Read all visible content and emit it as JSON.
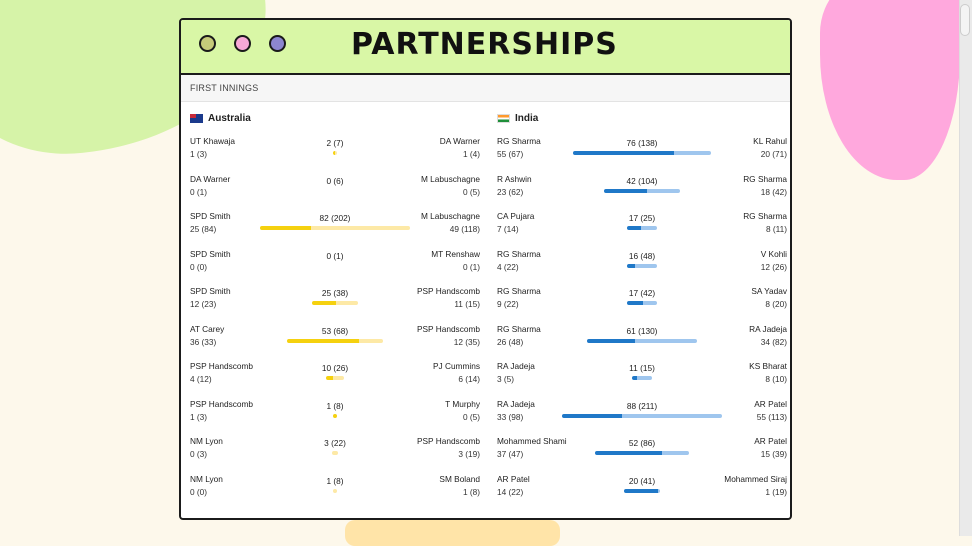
{
  "page": {
    "title": "PARTNERSHIPS",
    "innings_label": "FIRST INNINGS"
  },
  "colors": {
    "aus_strong": "#f5d10f",
    "aus_light": "#fde9a6",
    "ind_strong": "#1f78c8",
    "ind_light": "#9fc6ee"
  },
  "teams": [
    {
      "name": "Australia",
      "flag": "australia-flag-icon",
      "partnerships": [
        {
          "left_name": "UT Khawaja",
          "left_runs": "1 (3)",
          "runs": "2 (7)",
          "right_name": "DA Warner",
          "right_runs": "1 (4)",
          "left_val": 1,
          "right_val": 1,
          "total": 2
        },
        {
          "left_name": "DA Warner",
          "left_runs": "0 (1)",
          "runs": "0 (6)",
          "right_name": "M Labuschagne",
          "right_runs": "0 (5)",
          "left_val": 0,
          "right_val": 0,
          "total": 0
        },
        {
          "left_name": "SPD Smith",
          "left_runs": "25 (84)",
          "runs": "82 (202)",
          "right_name": "M Labuschagne",
          "right_runs": "49 (118)",
          "left_val": 25,
          "right_val": 49,
          "total": 82
        },
        {
          "left_name": "SPD Smith",
          "left_runs": "0 (0)",
          "runs": "0 (1)",
          "right_name": "MT Renshaw",
          "right_runs": "0 (1)",
          "left_val": 0,
          "right_val": 0,
          "total": 0
        },
        {
          "left_name": "SPD Smith",
          "left_runs": "12 (23)",
          "runs": "25 (38)",
          "right_name": "PSP Handscomb",
          "right_runs": "11 (15)",
          "left_val": 12,
          "right_val": 11,
          "total": 25
        },
        {
          "left_name": "AT Carey",
          "left_runs": "36 (33)",
          "runs": "53 (68)",
          "right_name": "PSP Handscomb",
          "right_runs": "12 (35)",
          "left_val": 36,
          "right_val": 12,
          "total": 53
        },
        {
          "left_name": "PSP Handscomb",
          "left_runs": "4 (12)",
          "runs": "10 (26)",
          "right_name": "PJ Cummins",
          "right_runs": "6 (14)",
          "left_val": 4,
          "right_val": 6,
          "total": 10
        },
        {
          "left_name": "PSP Handscomb",
          "left_runs": "1 (3)",
          "runs": "1 (8)",
          "right_name": "T Murphy",
          "right_runs": "0 (5)",
          "left_val": 1,
          "right_val": 0,
          "total": 1
        },
        {
          "left_name": "NM Lyon",
          "left_runs": "0 (3)",
          "runs": "3 (22)",
          "right_name": "PSP Handscomb",
          "right_runs": "3 (19)",
          "left_val": 0,
          "right_val": 3,
          "total": 3
        },
        {
          "left_name": "NM Lyon",
          "left_runs": "0 (0)",
          "runs": "1 (8)",
          "right_name": "SM Boland",
          "right_runs": "1 (8)",
          "left_val": 0,
          "right_val": 1,
          "total": 1
        }
      ]
    },
    {
      "name": "India",
      "flag": "india-flag-icon",
      "partnerships": [
        {
          "left_name": "RG Sharma",
          "left_runs": "55 (67)",
          "runs": "76 (138)",
          "right_name": "KL Rahul",
          "right_runs": "20 (71)",
          "left_val": 55,
          "right_val": 20,
          "total": 76
        },
        {
          "left_name": "R Ashwin",
          "left_runs": "23 (62)",
          "runs": "42 (104)",
          "right_name": "RG Sharma",
          "right_runs": "18 (42)",
          "left_val": 23,
          "right_val": 18,
          "total": 42
        },
        {
          "left_name": "CA Pujara",
          "left_runs": "7 (14)",
          "runs": "17 (25)",
          "right_name": "RG Sharma",
          "right_runs": "8 (11)",
          "left_val": 7,
          "right_val": 8,
          "total": 17
        },
        {
          "left_name": "RG Sharma",
          "left_runs": "4 (22)",
          "runs": "16 (48)",
          "right_name": "V Kohli",
          "right_runs": "12 (26)",
          "left_val": 4,
          "right_val": 12,
          "total": 16
        },
        {
          "left_name": "RG Sharma",
          "left_runs": "9 (22)",
          "runs": "17 (42)",
          "right_name": "SA Yadav",
          "right_runs": "8 (20)",
          "left_val": 9,
          "right_val": 8,
          "total": 17
        },
        {
          "left_name": "RG Sharma",
          "left_runs": "26 (48)",
          "runs": "61 (130)",
          "right_name": "RA Jadeja",
          "right_runs": "34 (82)",
          "left_val": 26,
          "right_val": 34,
          "total": 61
        },
        {
          "left_name": "RA Jadeja",
          "left_runs": "3 (5)",
          "runs": "11 (15)",
          "right_name": "KS Bharat",
          "right_runs": "8 (10)",
          "left_val": 3,
          "right_val": 8,
          "total": 11
        },
        {
          "left_name": "RA Jadeja",
          "left_runs": "33 (98)",
          "runs": "88 (211)",
          "right_name": "AR Patel",
          "right_runs": "55 (113)",
          "left_val": 33,
          "right_val": 55,
          "total": 88
        },
        {
          "left_name": "Mohammed Shami",
          "left_runs": "37 (47)",
          "runs": "52 (86)",
          "right_name": "AR Patel",
          "right_runs": "15 (39)",
          "left_val": 37,
          "right_val": 15,
          "total": 52
        },
        {
          "left_name": "AR Patel",
          "left_runs": "14 (22)",
          "runs": "20 (41)",
          "right_name": "Mohammed Siraj",
          "right_runs": "1 (19)",
          "left_val": 14,
          "right_val": 1,
          "total": 20
        }
      ]
    }
  ]
}
